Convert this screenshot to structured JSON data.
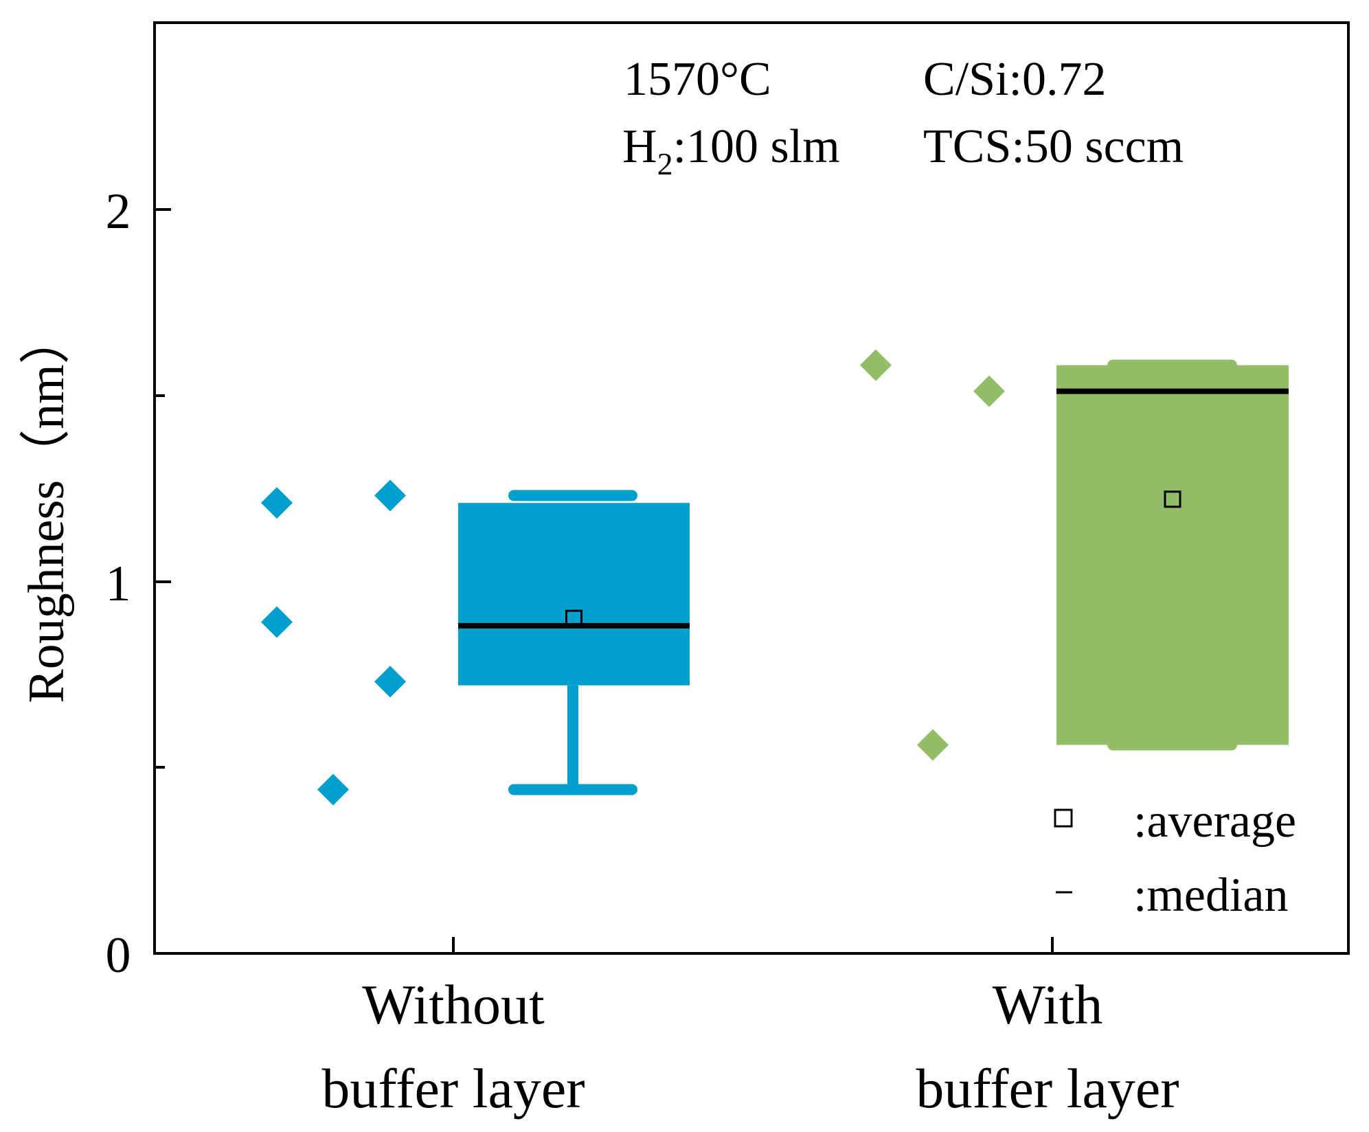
{
  "chart_data": {
    "type": "box",
    "ylabel": "Roughness（nm）",
    "ylim": [
      0,
      2.5
    ],
    "yticks_major": [
      "0",
      "1",
      "2"
    ],
    "yticks_minor": [
      0.5,
      1.5
    ],
    "categories": [
      {
        "line1": "Without",
        "line2": "buffer layer"
      },
      {
        "line1": "With",
        "line2": "buffer layer"
      }
    ],
    "series": [
      {
        "name": "Without buffer layer",
        "color": "#009FCE",
        "points": [
          1.21,
          0.89,
          0.44,
          1.23,
          0.73
        ],
        "box": {
          "q1": 0.72,
          "q3": 1.21,
          "median": 0.88,
          "mean": 0.9,
          "whisker_low": 0.44,
          "whisker_high": 1.23
        }
      },
      {
        "name": "With buffer layer",
        "color": "#93BE68",
        "points": [
          1.58,
          0.56,
          1.51
        ],
        "box": {
          "q1": 0.56,
          "q3": 1.58,
          "median": 1.51,
          "mean": 1.22,
          "whisker_low": 0.56,
          "whisker_high": 1.58
        }
      }
    ],
    "annotations": {
      "temp": "1570°C",
      "csi": "C/Si:0.72",
      "h2_prefix": "H",
      "h2_sub": "2",
      "h2_suffix": ":100 slm",
      "tcs": "TCS:50 sccm"
    },
    "legend": {
      "position": "bottom-right",
      "average_label": ":average",
      "median_label": ":median"
    }
  }
}
